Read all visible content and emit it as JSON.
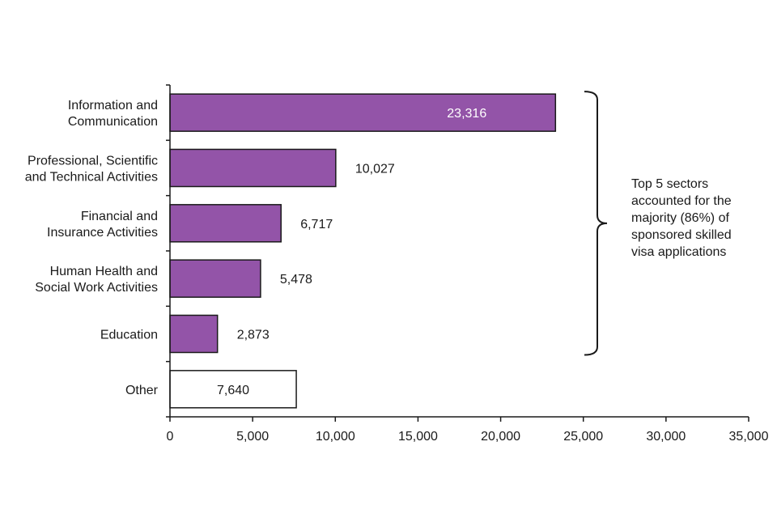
{
  "chart_data": {
    "type": "bar",
    "orientation": "horizontal",
    "title": "",
    "xlabel": "",
    "ylabel": "",
    "xlim": [
      0,
      35000
    ],
    "xticks": [
      0,
      5000,
      10000,
      15000,
      20000,
      25000,
      30000,
      35000
    ],
    "xtick_labels": [
      "0",
      "5,000",
      "10,000",
      "15,000",
      "20,000",
      "25,000",
      "30,000",
      "35,000"
    ],
    "categories": [
      [
        "Information and",
        "Communication"
      ],
      [
        "Professional, Scientific",
        "and Technical Activities"
      ],
      [
        "Financial and",
        "Insurance Activities"
      ],
      [
        "Human Health and",
        "Social Work Activities"
      ],
      [
        "Education"
      ],
      [
        "Other"
      ]
    ],
    "values": [
      23316,
      10027,
      6717,
      5478,
      2873,
      7640
    ],
    "value_labels": [
      "23,316",
      "10,027",
      "6,717",
      "5,478",
      "2,873",
      "7,640"
    ],
    "bar_styles": [
      "highlight",
      "highlight",
      "highlight",
      "highlight",
      "highlight",
      "outline"
    ],
    "grid": false,
    "annotation": {
      "brace_covers": [
        0,
        4
      ],
      "lines": [
        "Top 5 sectors",
        "accounted for the",
        "majority (86%) of",
        "sponsored skilled",
        "visa applications"
      ]
    }
  },
  "colors": {
    "highlight_fill": "#9354a8",
    "outline_fill": "#ffffff",
    "bar_stroke": "#1a1a1a",
    "inside_label": "#ffffff",
    "text": "#1a1a1a"
  }
}
